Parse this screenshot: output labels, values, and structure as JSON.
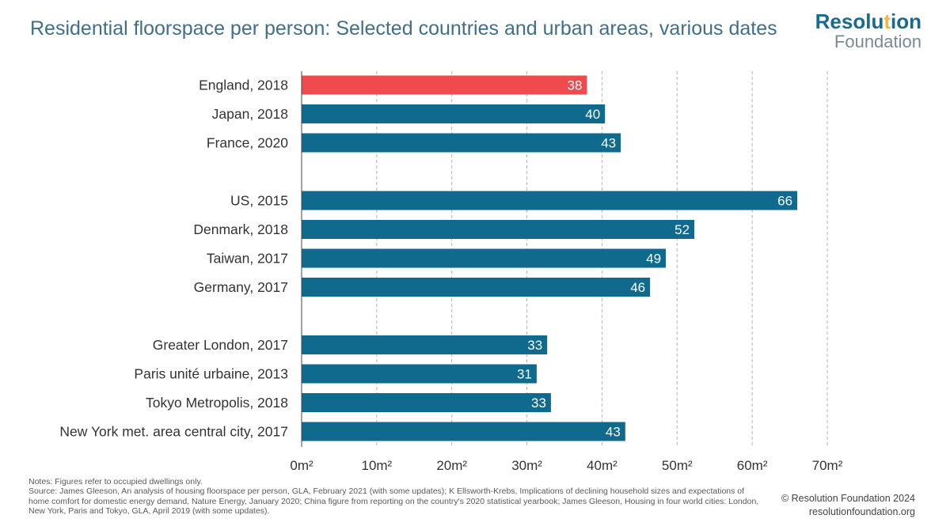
{
  "header": {
    "title": "Residential floorspace per person: Selected countries and urban areas, various dates",
    "logo_line1_a": "Resolu",
    "logo_line1_b": "t",
    "logo_line1_c": "ion",
    "logo_line2": "Foundation"
  },
  "colors": {
    "highlight": "#f04a4f",
    "bar": "#0f6a8e",
    "brand": "#1a6a8f",
    "brand_accent": "#f2b83b",
    "title": "#3f6f8a"
  },
  "chart_data": {
    "type": "bar",
    "orientation": "horizontal",
    "title": "Residential floorspace per person: Selected countries and urban areas, various dates",
    "categories": [
      "England, 2018",
      "Japan, 2018",
      "France, 2020",
      "US, 2015",
      "Denmark, 2018",
      "Taiwan, 2017",
      "Germany, 2017",
      "Greater London, 2017",
      "Paris unité urbaine, 2013",
      "Tokyo Metropolis, 2018",
      "New York met. area central city, 2017"
    ],
    "values": [
      38,
      40.4,
      42.5,
      66,
      52.3,
      48.5,
      46.4,
      32.7,
      31.3,
      33.2,
      43.1
    ],
    "data_labels": [
      "38",
      "40",
      "43",
      "66",
      "52",
      "49",
      "46",
      "33",
      "31",
      "33",
      "43"
    ],
    "groups": [
      [
        0,
        1,
        2
      ],
      [
        3,
        4,
        5,
        6
      ],
      [
        7,
        8,
        9,
        10
      ]
    ],
    "highlight_index": 0,
    "xlim": [
      0,
      70
    ],
    "xticks": [
      0,
      10,
      20,
      30,
      40,
      50,
      60,
      70
    ],
    "xtick_labels": [
      "0m²",
      "10m²",
      "20m²",
      "30m²",
      "40m²",
      "50m²",
      "60m²",
      "70m²"
    ],
    "grid": "vertical-dashed",
    "xlabel": "",
    "ylabel": ""
  },
  "footer": {
    "notes": "Notes: Figures refer to occupied dwellings only.",
    "source": "Source: James Gleeson, An analysis of housing floorspace per person, GLA, February 2021 (with some updates); K Ellsworth-Krebs, Implications of declining household sizes and expectations of home comfort for domestic energy demand, Nature Energy, January 2020; China figure from reporting on the country's 2020 statistical yearbook; James Gleeson, Housing in four world cities: London, New York, Paris and Tokyo, GLA, April 2019 (with some updates).",
    "copyright": "© Resolution Foundation 2024",
    "website": "resolutionfoundation.org"
  }
}
